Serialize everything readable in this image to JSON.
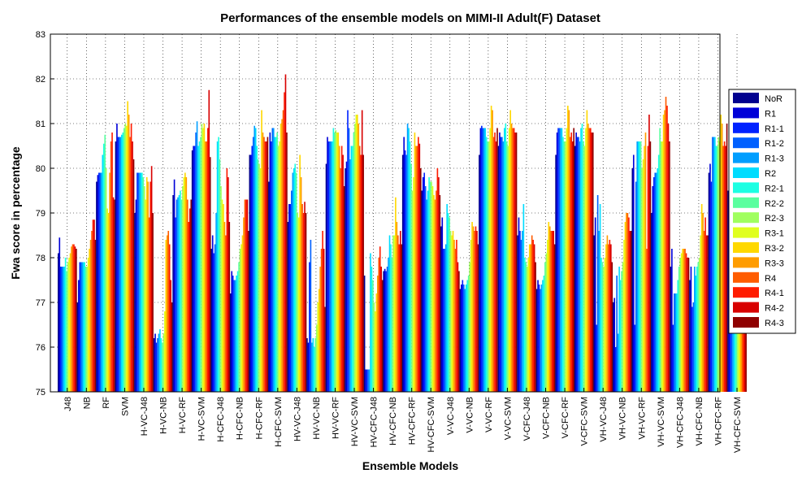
{
  "chart_data": {
    "type": "bar",
    "title": "Performances of the ensemble models on MIMI-II Adult(F) Dataset",
    "xlabel": "Ensemble Models",
    "ylabel": "Fwa score in percentage",
    "ylim": [
      75,
      83
    ],
    "yticks": [
      "75",
      "76",
      "77",
      "78",
      "79",
      "80",
      "81",
      "82",
      "83"
    ],
    "grid": true,
    "legend_position": "right",
    "categories": [
      "J48",
      "NB",
      "RF",
      "SVM",
      "H-VC-J48",
      "H-VC-NB",
      "H-VC-RF",
      "H-VC-SVM",
      "H-CFC-J48",
      "H-CFC-NB",
      "H-CFC-RF",
      "H-CFC-SVM",
      "HV-VC-J48",
      "HV-VC-NB",
      "HV-VC-RF",
      "HV-VC-SVM",
      "HV-CFC-J48",
      "HV-CFC-NB",
      "HV-CFC-RF",
      "HV-CFC-SVM",
      "V-VC-J48",
      "V-VC-NB",
      "V-VC-RF",
      "V-VC-SVM",
      "V-CFC-J48",
      "V-CFC-NB",
      "V-CFC-RF",
      "V-CFC-SVM",
      "VH-VC-J48",
      "VH-VC-NB",
      "VH-VC-RF",
      "VH-VC-SVM",
      "VH-CFC-J48",
      "VH-CFC-NB",
      "VH-CFC-RF",
      "VH-CFC-SVM"
    ],
    "series_names": [
      "NoR",
      "R1",
      "R1-1",
      "R1-2",
      "R1-3",
      "R2",
      "R2-1",
      "R2-2",
      "R2-3",
      "R3-1",
      "R3-2",
      "R3-3",
      "R4",
      "R4-1",
      "R4-2",
      "R4-3"
    ],
    "series_colors": [
      "#00008f",
      "#0000d8",
      "#0022ff",
      "#0060ff",
      "#009eff",
      "#00dcff",
      "#1cffe3",
      "#5aff9f",
      "#a0ff5f",
      "#e0ff1f",
      "#ffd800",
      "#ff9c00",
      "#ff5c00",
      "#ff1c00",
      "#d80000",
      "#8f0000"
    ],
    "values": [
      [
        78.1,
        78.45,
        77.8,
        77.8,
        77.8,
        77.8,
        78.0,
        77.7,
        77.9,
        78.0,
        78.1,
        78.25,
        78.3,
        78.3,
        78.25,
        78.2
      ],
      [
        77.0,
        77.5,
        77.9,
        77.9,
        77.9,
        77.9,
        77.9,
        77.8,
        77.8,
        78.0,
        78.2,
        78.4,
        78.6,
        78.85,
        78.85,
        78.4
      ],
      [
        79.7,
        79.85,
        79.9,
        79.9,
        79.9,
        80.3,
        80.55,
        80.75,
        80.0,
        79.1,
        79.0,
        79.9,
        80.6,
        80.8,
        79.35,
        79.3
      ],
      [
        80.6,
        81.0,
        80.7,
        80.7,
        80.7,
        80.75,
        80.8,
        80.9,
        81.0,
        80.95,
        81.5,
        81.2,
        80.7,
        81.0,
        80.6,
        80.2
      ],
      [
        79.0,
        79.3,
        79.9,
        79.9,
        79.9,
        79.9,
        79.9,
        79.8,
        79.6,
        79.3,
        79.8,
        79.7,
        78.9,
        79.7,
        80.05,
        79.0
      ],
      [
        76.2,
        76.3,
        76.1,
        76.2,
        76.3,
        76.4,
        76.2,
        76.1,
        76.3,
        76.8,
        78.4,
        78.5,
        78.6,
        78.3,
        77.5,
        77.0
      ],
      [
        79.4,
        79.75,
        78.9,
        79.3,
        79.35,
        79.4,
        79.5,
        79.3,
        79.6,
        79.8,
        79.9,
        79.8,
        79.3,
        78.8,
        79.1,
        79.3
      ],
      [
        80.4,
        80.5,
        80.5,
        80.8,
        81.05,
        80.5,
        80.6,
        80.7,
        81.0,
        80.9,
        81.0,
        80.6,
        80.6,
        80.9,
        81.75,
        80.25
      ],
      [
        78.2,
        78.5,
        78.1,
        78.3,
        79.0,
        80.6,
        80.7,
        80.2,
        79.6,
        79.3,
        79.2,
        78.8,
        78.5,
        80.0,
        79.8,
        78.8
      ],
      [
        77.2,
        77.7,
        77.6,
        77.5,
        77.5,
        77.6,
        77.7,
        77.9,
        78.2,
        78.3,
        78.5,
        78.9,
        79.3,
        79.3,
        79.3,
        78.6
      ],
      [
        80.3,
        80.3,
        80.5,
        80.7,
        80.95,
        80.9,
        80.5,
        80.2,
        80.1,
        80.0,
        81.3,
        80.8,
        80.7,
        80.6,
        80.6,
        80.7
      ],
      [
        79.7,
        80.8,
        80.6,
        80.9,
        80.9,
        80.7,
        80.7,
        80.8,
        80.5,
        80.6,
        81.0,
        81.1,
        81.3,
        81.7,
        82.1,
        80.8
      ],
      [
        78.8,
        79.2,
        79.2,
        79.5,
        79.9,
        80.0,
        80.1,
        79.9,
        79.0,
        78.9,
        80.3,
        79.8,
        79.2,
        79.0,
        79.25,
        79.0
      ],
      [
        76.2,
        76.1,
        77.9,
        78.4,
        76.1,
        76.2,
        76.0,
        76.2,
        76.5,
        77.0,
        77.3,
        77.8,
        78.2,
        78.6,
        78.2,
        76.9
      ],
      [
        80.1,
        80.7,
        80.6,
        80.6,
        80.6,
        80.6,
        80.9,
        80.8,
        80.85,
        80.8,
        80.8,
        80.5,
        80.0,
        80.5,
        80.3,
        79.6
      ],
      [
        80.0,
        80.15,
        81.3,
        80.9,
        80.2,
        80.5,
        80.5,
        80.8,
        81.0,
        81.2,
        81.2,
        81.0,
        80.5,
        80.3,
        81.3,
        80.3
      ],
      [
        77.6,
        75.5,
        75.5,
        75.5,
        75.5,
        78.1,
        77.8,
        77.5,
        77.0,
        76.8,
        77.2,
        77.6,
        78.0,
        78.25,
        77.8,
        77.5
      ],
      [
        77.7,
        77.75,
        77.7,
        77.8,
        78.0,
        78.5,
        78.3,
        78.0,
        78.5,
        78.5,
        79.35,
        78.8,
        78.5,
        78.3,
        78.6,
        78.3
      ],
      [
        80.3,
        80.7,
        80.4,
        80.3,
        81.0,
        80.9,
        80.6,
        80.1,
        79.5,
        79.8,
        80.8,
        80.5,
        80.5,
        80.7,
        80.55,
        80.0
      ],
      [
        79.5,
        79.8,
        79.9,
        79.6,
        79.3,
        79.5,
        79.8,
        79.7,
        79.7,
        79.6,
        79.4,
        79.3,
        79.5,
        80.0,
        79.8,
        79.4
      ],
      [
        78.7,
        78.9,
        78.2,
        78.2,
        78.3,
        79.2,
        79.0,
        78.9,
        78.6,
        78.5,
        78.6,
        78.4,
        78.2,
        78.4,
        77.9,
        77.7
      ],
      [
        77.3,
        77.4,
        77.5,
        77.4,
        77.3,
        77.4,
        77.5,
        77.6,
        77.9,
        78.4,
        78.8,
        78.7,
        78.6,
        78.7,
        78.6,
        78.3
      ],
      [
        80.3,
        80.9,
        80.95,
        80.9,
        80.9,
        80.9,
        80.7,
        80.6,
        80.6,
        80.9,
        81.4,
        81.3,
        80.7,
        80.8,
        80.6,
        80.9
      ],
      [
        80.5,
        80.8,
        80.7,
        80.7,
        80.6,
        80.9,
        81.0,
        80.6,
        80.5,
        80.9,
        81.3,
        81.0,
        80.9,
        80.9,
        80.8,
        80.8
      ],
      [
        78.5,
        78.9,
        78.6,
        78.4,
        78.6,
        79.2,
        78.0,
        77.9,
        77.8,
        78.0,
        78.3,
        78.3,
        78.5,
        78.4,
        78.3,
        77.9
      ],
      [
        77.3,
        77.5,
        77.4,
        77.3,
        77.4,
        77.5,
        77.6,
        77.9,
        78.1,
        78.4,
        78.8,
        78.7,
        78.6,
        78.6,
        78.6,
        78.3
      ],
      [
        80.3,
        80.8,
        80.9,
        80.9,
        80.9,
        80.9,
        80.7,
        80.6,
        80.6,
        80.9,
        81.4,
        81.3,
        80.7,
        80.8,
        80.6,
        80.9
      ],
      [
        80.5,
        80.8,
        80.7,
        80.7,
        80.6,
        80.9,
        81.0,
        80.6,
        80.5,
        80.9,
        81.3,
        81.0,
        80.9,
        80.9,
        80.8,
        80.8
      ],
      [
        78.5,
        78.9,
        76.5,
        79.4,
        78.6,
        79.2,
        78.0,
        77.9,
        77.8,
        78.0,
        78.3,
        78.5,
        78.3,
        78.4,
        78.3,
        77.9
      ],
      [
        77.0,
        77.1,
        76.0,
        77.6,
        76.3,
        77.8,
        77.5,
        77.7,
        77.9,
        78.4,
        78.8,
        79.0,
        79.0,
        78.9,
        78.6,
        78.6
      ],
      [
        80.0,
        80.3,
        76.5,
        79.7,
        80.6,
        80.6,
        80.6,
        80.6,
        80.0,
        80.2,
        80.5,
        80.8,
        78.2,
        80.5,
        81.2,
        80.6
      ],
      [
        79.0,
        79.6,
        79.8,
        79.9,
        79.9,
        80.0,
        80.3,
        80.9,
        80.6,
        80.6,
        81.2,
        81.3,
        81.6,
        81.4,
        81.0,
        80.6
      ],
      [
        77.8,
        78.2,
        76.5,
        77.2,
        77.2,
        77.2,
        77.5,
        77.8,
        78.0,
        78.1,
        78.2,
        78.2,
        78.2,
        78.1,
        78.0,
        78.0
      ],
      [
        77.5,
        77.8,
        76.9,
        77.0,
        77.8,
        77.6,
        77.8,
        77.9,
        78.0,
        78.5,
        79.2,
        79.0,
        78.6,
        78.9,
        78.5,
        78.5
      ],
      [
        79.9,
        80.1,
        79.7,
        80.7,
        80.7,
        80.7,
        80.5,
        80.5,
        80.7,
        80.6,
        81.2,
        81.0,
        80.5,
        80.6,
        80.5,
        81.0
      ],
      [
        79.5,
        81.6,
        81.5,
        80.0,
        79.8,
        79.9,
        80.6,
        80.6,
        80.5,
        80.6,
        80.5,
        81.0,
        80.6,
        80.6,
        80.5,
        81.2
      ]
    ]
  }
}
